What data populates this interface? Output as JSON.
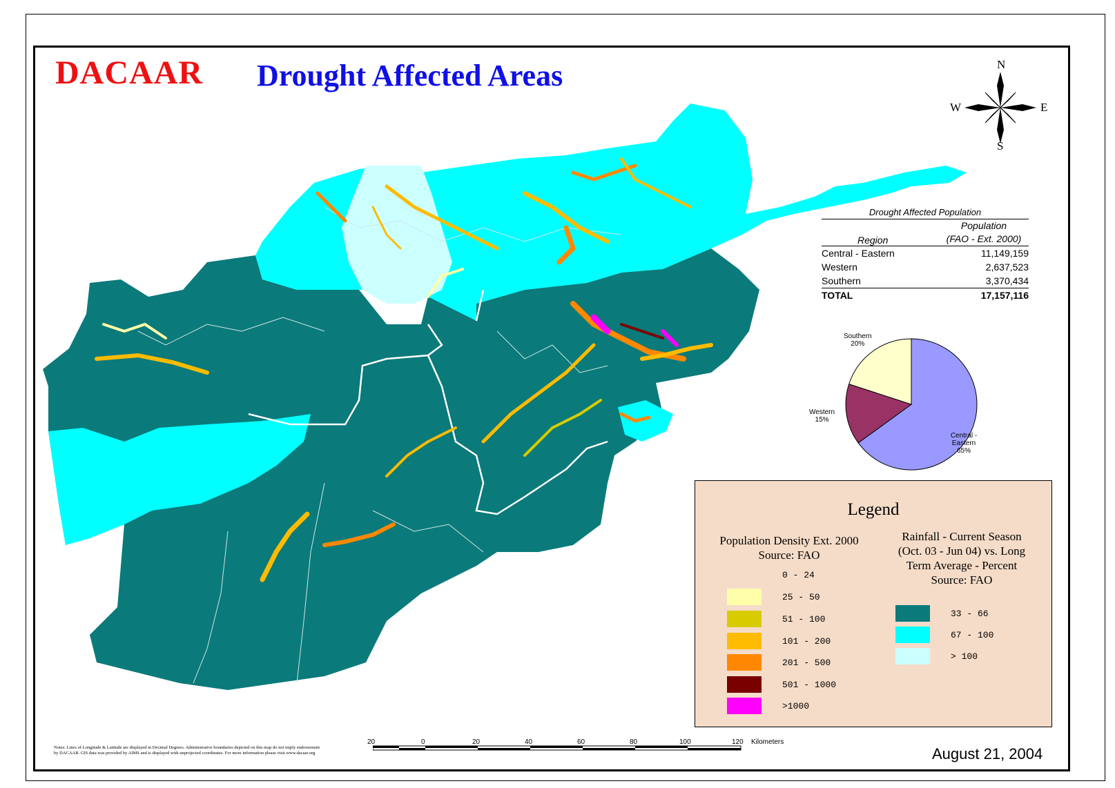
{
  "header": {
    "brand": "DACAAR",
    "title": "Drought Affected Areas"
  },
  "compass": {
    "n": "N",
    "s": "S",
    "e": "E",
    "w": "W"
  },
  "stats_table": {
    "caption": "Drought Affected Population",
    "col_region": "Region",
    "col_population_line1": "Population",
    "col_population_line2": "(FAO - Ext. 2000)",
    "rows": [
      {
        "region": "Central - Eastern",
        "population": "11,149,159"
      },
      {
        "region": "Western",
        "population": "2,637,523"
      },
      {
        "region": "Southern",
        "population": "3,370,434"
      }
    ],
    "total": {
      "region": "TOTAL",
      "population": "17,157,116"
    }
  },
  "pie": {
    "slices": [
      {
        "name": "Central - Eastern",
        "label_line1": "Central - Eastern",
        "label_line2": "65%",
        "value": 65,
        "color": "#9999ff"
      },
      {
        "name": "Western",
        "label_line1": "Western",
        "label_line2": "15%",
        "value": 15,
        "color": "#993366"
      },
      {
        "name": "Southern",
        "label_line1": "Southern",
        "label_line2": "20%",
        "value": 20,
        "color": "#ffffcc"
      }
    ]
  },
  "legend": {
    "title": "Legend",
    "density_head_line1": "Population Density  Ext. 2000",
    "density_head_line2": "Source: FAO",
    "density_items": [
      {
        "label": "0 - 24",
        "color": ""
      },
      {
        "label": "25 - 50",
        "color": "#ffffaa"
      },
      {
        "label": "51 - 100",
        "color": "#d6cc00"
      },
      {
        "label": "101 - 200",
        "color": "#ffbb00"
      },
      {
        "label": "201 - 500",
        "color": "#ff8800"
      },
      {
        "label": "501 - 1000",
        "color": "#7a0000"
      },
      {
        "label": ">1000",
        "color": "#ff00ff"
      }
    ],
    "rain_head_line1": "Rainfall - Current Season",
    "rain_head_line2": "(Oct. 03 - Jun 04) vs. Long",
    "rain_head_line3": "Term Average - Percent",
    "rain_head_line4": "Source: FAO",
    "rain_items": [
      {
        "label": "33 - 66",
        "color": "#0b7a7a"
      },
      {
        "label": "67 - 100",
        "color": "#00ffff"
      },
      {
        "label": "> 100",
        "color": "#ccffff"
      }
    ]
  },
  "scale": {
    "ticks": [
      "20",
      "0",
      "20",
      "40",
      "60",
      "80",
      "100",
      "120"
    ],
    "unit": "Kilometers"
  },
  "notes": "Notes: Lines of Longitude & Latitude are displayed in Decimal Degrees. Administrative boundaries depicted on this map do not imply endorsement by DACAAR. GIS data was provided by AIMS and is displayed with unprojected coordinates. For more information please visit www.dacaar.org",
  "date": "August 21, 2004",
  "colors": {
    "teal": "#0b7a7a",
    "cyan": "#00ffff",
    "pale_cyan": "#ccffff"
  }
}
